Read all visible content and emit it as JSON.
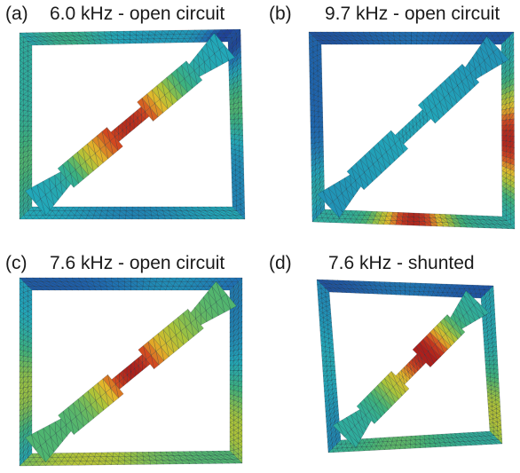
{
  "panels": [
    {
      "label": "(a)",
      "title": "6.0 kHz - open circuit"
    },
    {
      "label": "(b)",
      "title": "9.7 kHz - open circuit"
    },
    {
      "label": "(c)",
      "title": "7.6 kHz - open circuit"
    },
    {
      "label": "(d)",
      "title": "7.6 kHz - shunted"
    }
  ],
  "colormap": [
    "#1f2a8a",
    "#1f6fb3",
    "#22a7b8",
    "#3fb27a",
    "#a9c43a",
    "#e3b82a",
    "#d2461f",
    "#a5151a"
  ]
}
